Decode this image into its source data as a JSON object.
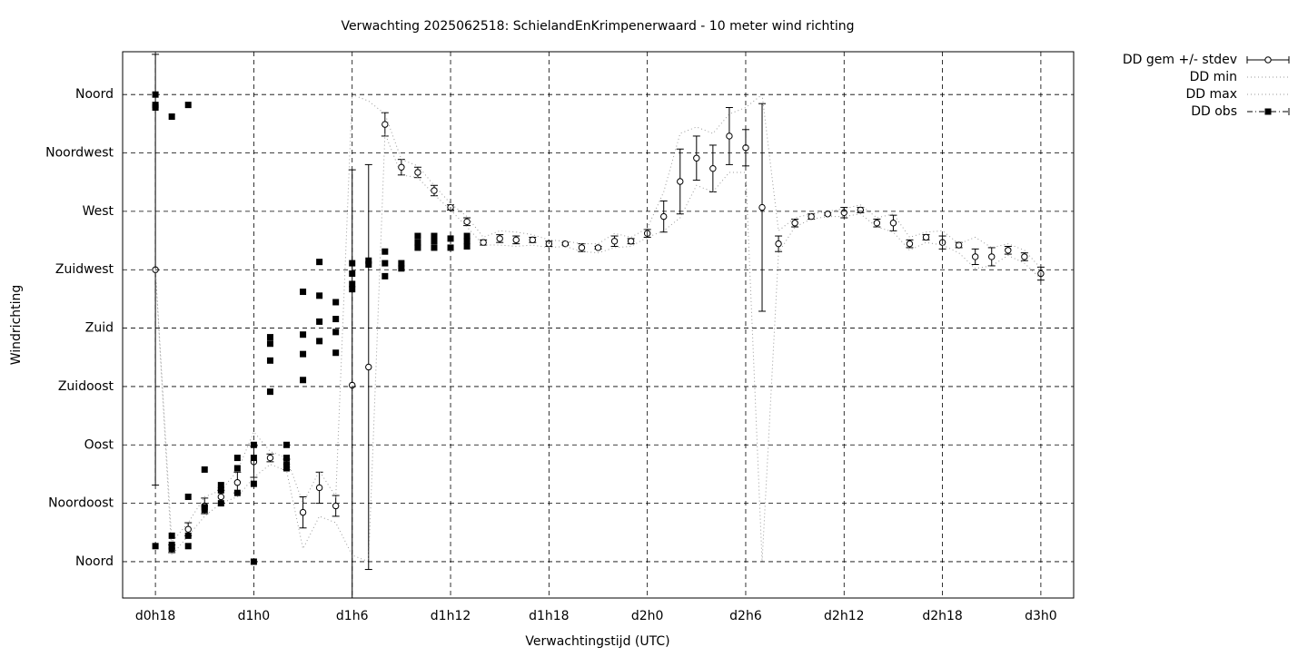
{
  "chart_data": {
    "type": "errorbar",
    "title": "Verwachting 2025062518: SchielandEnKrimpenerwaard - 10 meter wind richting",
    "x_label": "Verwachtingstijd (UTC)",
    "y_label": "Windrichting",
    "xlim": [
      16,
      74
    ],
    "ylim": [
      -28,
      393
    ],
    "xticks": [
      {
        "value": 18,
        "label": "d0h18"
      },
      {
        "value": 24,
        "label": "d1h0"
      },
      {
        "value": 30,
        "label": "d1h6"
      },
      {
        "value": 36,
        "label": "d1h12"
      },
      {
        "value": 42,
        "label": "d1h18"
      },
      {
        "value": 48,
        "label": "d2h0"
      },
      {
        "value": 54,
        "label": "d2h6"
      },
      {
        "value": 60,
        "label": "d2h12"
      },
      {
        "value": 66,
        "label": "d2h18"
      },
      {
        "value": 72,
        "label": "d3h0"
      }
    ],
    "yticks": [
      {
        "value": 0,
        "label": "Noord"
      },
      {
        "value": 45,
        "label": "Noordoost"
      },
      {
        "value": 90,
        "label": "Oost"
      },
      {
        "value": 135,
        "label": "Zuidoost"
      },
      {
        "value": 180,
        "label": "Zuid"
      },
      {
        "value": 225,
        "label": "Zuidwest"
      },
      {
        "value": 270,
        "label": "West"
      },
      {
        "value": 315,
        "label": "Noordwest"
      },
      {
        "value": 360,
        "label": "Noord"
      }
    ],
    "grid": true,
    "legend": "outside-top-right",
    "x": [
      18,
      19,
      20,
      21,
      22,
      23,
      24,
      25,
      26,
      27,
      28,
      29,
      30,
      31,
      32,
      33,
      34,
      35,
      36,
      37,
      38,
      39,
      40,
      41,
      42,
      43,
      44,
      45,
      46,
      47,
      48,
      49,
      50,
      51,
      52,
      53,
      54,
      55,
      56,
      57,
      58,
      59,
      60,
      61,
      62,
      63,
      64,
      65,
      66,
      67,
      68,
      69,
      70,
      71,
      72
    ],
    "series": [
      {
        "name": "DD gem +/- stdev",
        "color": "#000000",
        "style": "errorbar",
        "values": [
          225,
          10,
          25,
          43,
          50,
          61,
          77,
          80,
          75,
          38,
          57,
          43,
          136,
          150,
          337,
          304,
          300,
          286,
          273,
          262,
          246,
          249,
          248,
          248,
          245,
          245,
          242,
          242,
          247,
          247,
          253,
          266,
          293,
          311,
          303,
          328,
          319,
          273,
          245,
          261,
          266,
          268,
          269,
          271,
          261,
          261,
          245,
          250,
          246,
          244,
          235,
          235,
          240,
          235,
          222
        ],
        "errors": [
          166,
          3,
          5,
          6,
          5,
          8,
          12,
          3,
          4,
          12,
          12,
          8,
          166,
          156,
          9,
          6,
          4,
          4,
          2,
          3,
          2,
          3,
          3,
          2,
          2,
          1,
          3,
          1,
          4,
          2,
          3,
          12,
          25,
          17,
          18,
          22,
          14,
          80,
          6,
          3,
          2,
          1,
          4,
          2,
          3,
          6,
          3,
          2,
          5,
          2,
          6,
          7,
          3,
          3,
          5
        ]
      },
      {
        "name": "DD min",
        "color": "#999999",
        "style": "dotted",
        "values": [
          224,
          5,
          20,
          35,
          45,
          50,
          65,
          75,
          70,
          10,
          35,
          30,
          5,
          0,
          330,
          298,
          296,
          283,
          271,
          258,
          244,
          244,
          243,
          244,
          242,
          243,
          239,
          238,
          242,
          243,
          250,
          255,
          265,
          290,
          285,
          300,
          300,
          0,
          238,
          258,
          264,
          266,
          266,
          268,
          258,
          254,
          240,
          246,
          244,
          238,
          226,
          228,
          236,
          230,
          218
        ]
      },
      {
        "name": "DD max",
        "color": "#999999",
        "style": "dotted",
        "values": [
          226,
          15,
          30,
          50,
          55,
          70,
          100,
          85,
          80,
          45,
          70,
          50,
          360,
          355,
          345,
          310,
          305,
          290,
          276,
          266,
          250,
          255,
          254,
          252,
          248,
          247,
          245,
          245,
          253,
          250,
          257,
          285,
          330,
          335,
          330,
          345,
          350,
          360,
          255,
          265,
          268,
          270,
          272,
          275,
          265,
          268,
          250,
          254,
          255,
          245,
          250,
          242,
          245,
          240,
          226
        ]
      },
      {
        "name": "DD obs",
        "color": "#000000",
        "style": "points",
        "x": [
          18,
          18,
          18,
          18,
          19,
          19,
          19,
          19,
          20,
          20,
          20,
          20,
          21,
          21,
          21,
          22,
          22,
          22,
          23,
          23,
          23,
          24,
          24,
          24,
          24,
          25,
          25,
          25,
          25,
          26,
          26,
          26,
          26,
          27,
          27,
          27,
          27,
          28,
          28,
          28,
          28,
          29,
          29,
          29,
          29,
          30,
          30,
          30,
          30,
          31,
          31,
          32,
          32,
          32,
          33,
          33,
          34,
          34,
          34,
          35,
          35,
          35,
          36,
          36,
          37,
          37,
          37
        ],
        "values": [
          360,
          352,
          350,
          12,
          343,
          20,
          13,
          10,
          352,
          50,
          20,
          12,
          71,
          40,
          42,
          59,
          55,
          45,
          80,
          72,
          53,
          90,
          80,
          60,
          0,
          173,
          168,
          155,
          131,
          90,
          80,
          75,
          72,
          208,
          175,
          160,
          140,
          231,
          205,
          185,
          170,
          200,
          187,
          177,
          161,
          230,
          222,
          214,
          210,
          232,
          229,
          239,
          230,
          220,
          230,
          226,
          251,
          246,
          242,
          251,
          247,
          242,
          249,
          242,
          251,
          247,
          243
        ]
      }
    ]
  }
}
